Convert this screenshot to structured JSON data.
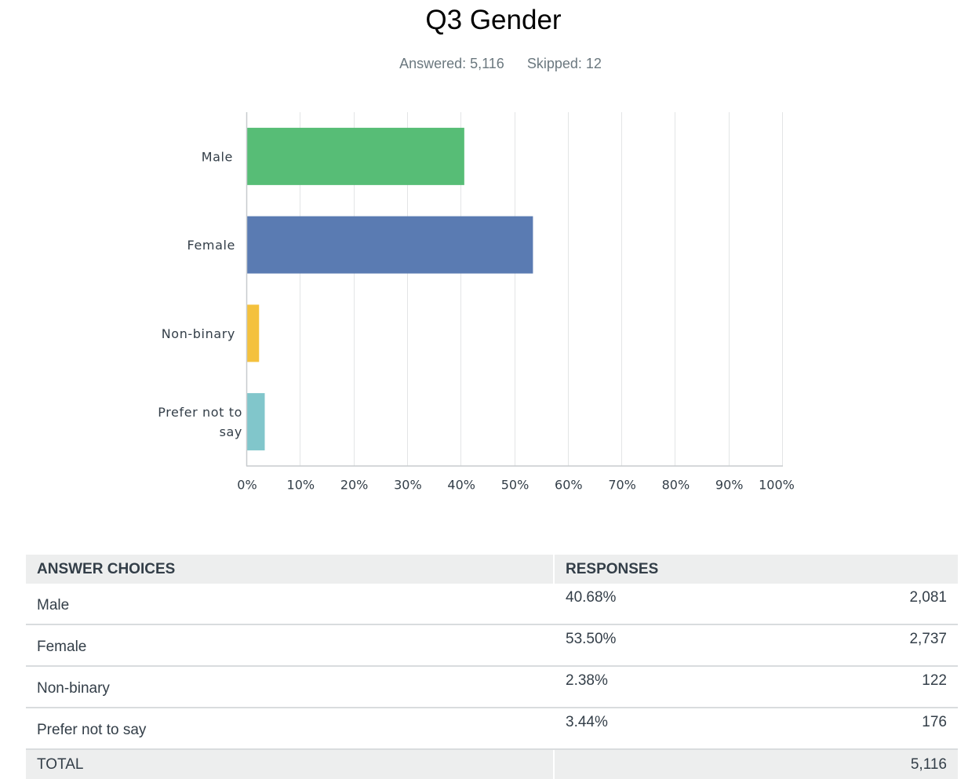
{
  "question": {
    "title": "Q3 Gender",
    "answered": "Answered: 5,116",
    "skipped": "Skipped: 12"
  },
  "chart_data": {
    "type": "bar",
    "orientation": "horizontal",
    "categories": [
      "Male",
      "Female",
      "Non-binary",
      "Prefer not to say"
    ],
    "category_lines": [
      [
        "Male"
      ],
      [
        "Female"
      ],
      [
        "Non-binary"
      ],
      [
        "Prefer not to",
        "say"
      ]
    ],
    "values": [
      40.68,
      53.5,
      2.38,
      3.44
    ],
    "colors": [
      "#57bd76",
      "#5a7bb2",
      "#f4c13d",
      "#81c6cb"
    ],
    "xlim": [
      0,
      100
    ],
    "ticks": [
      0,
      10,
      20,
      30,
      40,
      50,
      60,
      70,
      80,
      90,
      100
    ],
    "tick_labels": [
      "0%",
      "10%",
      "20%",
      "30%",
      "40%",
      "50%",
      "60%",
      "70%",
      "80%",
      "90%",
      "100%"
    ],
    "grid": true
  },
  "table": {
    "headers": [
      "ANSWER CHOICES",
      "RESPONSES"
    ],
    "rows": [
      {
        "choice": "Male",
        "percent": "40.68%",
        "count": "2,081"
      },
      {
        "choice": "Female",
        "percent": "53.50%",
        "count": "2,737"
      },
      {
        "choice": "Non-binary",
        "percent": "2.38%",
        "count": "122"
      },
      {
        "choice": "Prefer not to say",
        "percent": "3.44%",
        "count": "176"
      }
    ],
    "total_label": "TOTAL",
    "total_count": "5,116"
  }
}
